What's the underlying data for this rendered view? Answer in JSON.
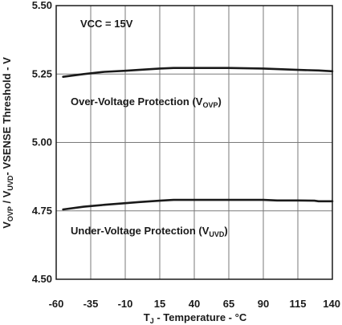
{
  "chart_data": {
    "type": "line",
    "xlabel": {
      "main": "T",
      "sub": "J",
      "rest": " - Temperature - °C"
    },
    "ylabel": {
      "p1": "V",
      "s1": "OVP",
      "p2": " / V",
      "s2": "UVD",
      "p3": "- VSENSE Threshold - V"
    },
    "xlim": [
      -60,
      140
    ],
    "ylim": [
      4.5,
      5.5
    ],
    "x_ticks": [
      -60,
      -35,
      -10,
      15,
      40,
      65,
      90,
      115,
      140
    ],
    "x_tick_labels": [
      "-60",
      "-35",
      "-10",
      "15",
      "40",
      "65",
      "90",
      "115",
      "140"
    ],
    "y_ticks": [
      4.5,
      4.75,
      5.0,
      5.25,
      5.5
    ],
    "y_tick_labels": [
      "4.50",
      "4.75",
      "5.00",
      "5.25",
      "5.50"
    ],
    "grid": true,
    "annotations": {
      "vcc": "VCC = 15V",
      "ovp": {
        "main": "Over-Voltage Protection (V",
        "sub": "OVP",
        "close": ")"
      },
      "uvd": {
        "main": "Under-Voltage Protection (V",
        "sub": "UVD",
        "close": ")"
      }
    },
    "series": [
      {
        "color": "#1a1a1a",
        "points": [
          [
            -55,
            5.24
          ],
          [
            -40,
            5.25
          ],
          [
            -25,
            5.258
          ],
          [
            -10,
            5.262
          ],
          [
            0,
            5.265
          ],
          [
            15,
            5.27
          ],
          [
            25,
            5.272
          ],
          [
            40,
            5.272
          ],
          [
            65,
            5.272
          ],
          [
            90,
            5.27
          ],
          [
            115,
            5.265
          ],
          [
            130,
            5.263
          ],
          [
            140,
            5.26
          ]
        ]
      },
      {
        "color": "#1a1a1a",
        "points": [
          [
            -55,
            4.755
          ],
          [
            -40,
            4.765
          ],
          [
            -25,
            4.772
          ],
          [
            -10,
            4.778
          ],
          [
            0,
            4.782
          ],
          [
            15,
            4.787
          ],
          [
            25,
            4.79
          ],
          [
            40,
            4.79
          ],
          [
            65,
            4.79
          ],
          [
            90,
            4.79
          ],
          [
            100,
            4.788
          ],
          [
            115,
            4.788
          ],
          [
            127,
            4.787
          ],
          [
            130,
            4.785
          ],
          [
            140,
            4.785
          ]
        ]
      }
    ]
  }
}
